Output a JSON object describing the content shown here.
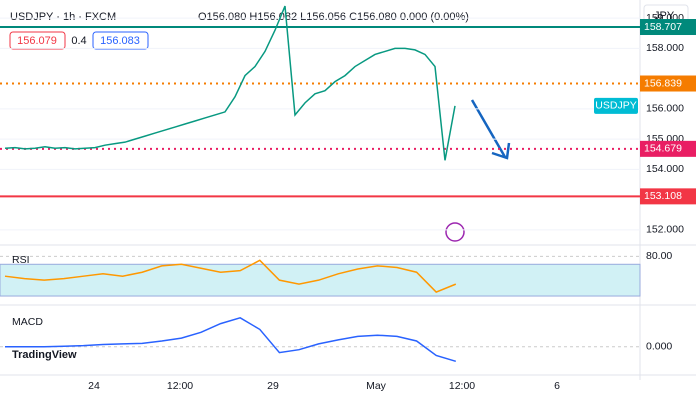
{
  "header": {
    "symbol": "USDJPY · 1h · FXCM",
    "ohlc": "O156.080 H156.082 L156.056 C156.080 0.000 (0.00%)",
    "bid": "156.079",
    "spread": "0.4",
    "ask": "156.083",
    "currency": "JPY"
  },
  "chart_data": {
    "type": "line",
    "values": [
      154.7,
      154.72,
      154.68,
      154.7,
      154.75,
      154.7,
      154.72,
      154.68,
      154.7,
      154.72,
      154.8,
      154.85,
      154.9,
      155.0,
      155.1,
      155.2,
      155.3,
      155.4,
      155.5,
      155.6,
      155.7,
      155.8,
      155.9,
      156.4,
      157.1,
      157.4,
      157.9,
      158.6,
      159.4,
      155.8,
      156.2,
      156.5,
      156.6,
      156.9,
      157.1,
      157.4,
      157.6,
      157.8,
      157.9,
      158.0,
      158.0,
      157.95,
      157.8,
      157.4,
      154.3,
      156.1
    ],
    "color": "#089981",
    "ylim": [
      151.5,
      159.6
    ],
    "yticks": [
      {
        "value": 159,
        "label": "159.000"
      },
      {
        "value": 158,
        "label": "158.000"
      },
      {
        "value": 156,
        "label": "156.000"
      },
      {
        "value": 155,
        "label": "155.000"
      },
      {
        "value": 154,
        "label": "154.000"
      },
      {
        "value": 152,
        "label": "152.000"
      }
    ],
    "levels": [
      {
        "value": 158.707,
        "label": "158.707",
        "color": "#00897b",
        "style": "solid"
      },
      {
        "value": 156.839,
        "label": "156.839",
        "color": "#f57c00",
        "style": "dotted"
      },
      {
        "value": 154.679,
        "label": "154.679",
        "color": "#e91e63",
        "style": "dotted"
      },
      {
        "value": 153.108,
        "label": "153.108",
        "color": "#f23645",
        "style": "solid"
      }
    ],
    "symbol_tag": "USDJPY",
    "xlabels": [
      "24",
      "12:00",
      "29",
      "May",
      "12:00",
      "6"
    ],
    "rsi": {
      "title": "RSI",
      "values": [
        55,
        52,
        50,
        52,
        55,
        58,
        55,
        60,
        68,
        70,
        65,
        60,
        62,
        75,
        50,
        45,
        50,
        58,
        64,
        68,
        66,
        60,
        35,
        45
      ],
      "color": "#ff9800",
      "ylim": [
        25,
        88
      ],
      "yticks": [
        {
          "value": 80,
          "label": "80.00"
        }
      ],
      "band": [
        70,
        30
      ]
    },
    "macd": {
      "title": "MACD",
      "values": [
        0,
        0,
        0,
        0.01,
        0.02,
        0.04,
        0.05,
        0.06,
        0.1,
        0.15,
        0.25,
        0.4,
        0.5,
        0.3,
        -0.1,
        -0.05,
        0.05,
        0.12,
        0.18,
        0.2,
        0.18,
        0.1,
        -0.15,
        -0.25
      ],
      "color": "#2962ff",
      "ylim": [
        -0.4,
        0.6
      ],
      "yticks": [
        {
          "value": 0,
          "label": "0.000"
        }
      ]
    },
    "brand": "TradingView"
  }
}
